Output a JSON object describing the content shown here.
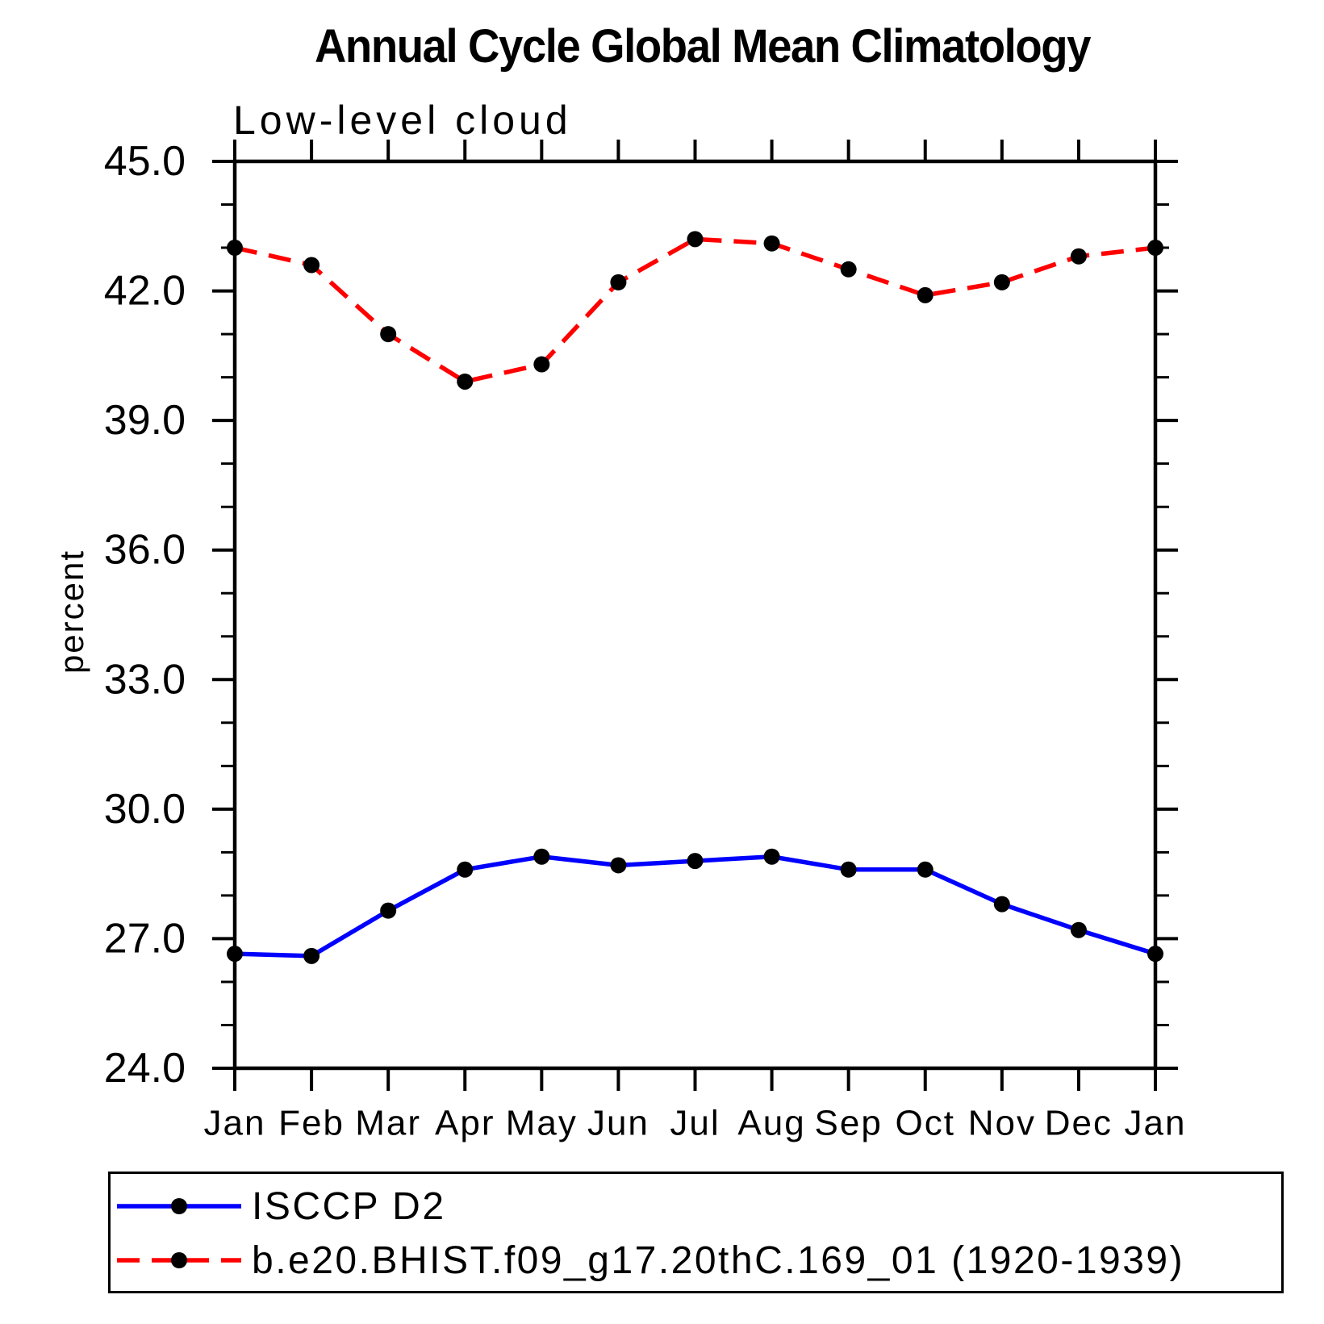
{
  "chart_data": {
    "type": "line",
    "title": "Annual Cycle Global Mean Climatology",
    "subtitle": "Low-level cloud",
    "ylabel": "percent",
    "categories": [
      "Jan",
      "Feb",
      "Mar",
      "Apr",
      "May",
      "Jun",
      "Jul",
      "Aug",
      "Sep",
      "Oct",
      "Nov",
      "Dec",
      "Jan"
    ],
    "ylim": [
      24.0,
      45.0
    ],
    "ytick_major_interval": 3.0,
    "ytick_minor_interval": 1.0,
    "ytick_decimals": 1,
    "grid": false,
    "frame": "box-with-outward-ticks",
    "legend_position": "bottom-left-box",
    "marker": {
      "shape": "filled-circle",
      "color": "#000000"
    },
    "series": [
      {
        "name": "ISCCP D2",
        "color": "#0000ff",
        "line_style": "solid",
        "values": [
          26.65,
          26.6,
          27.65,
          28.6,
          28.9,
          28.7,
          28.8,
          28.9,
          28.6,
          28.6,
          27.8,
          27.2,
          26.65
        ]
      },
      {
        "name": "b.e20.BHIST.f09_g17.20thC.169_01 (1920-1939)",
        "color": "#ff0000",
        "line_style": "dashed",
        "values": [
          43.0,
          42.6,
          41.0,
          39.9,
          40.3,
          42.2,
          43.2,
          43.1,
          42.5,
          41.9,
          42.2,
          42.8,
          43.0
        ]
      }
    ]
  }
}
